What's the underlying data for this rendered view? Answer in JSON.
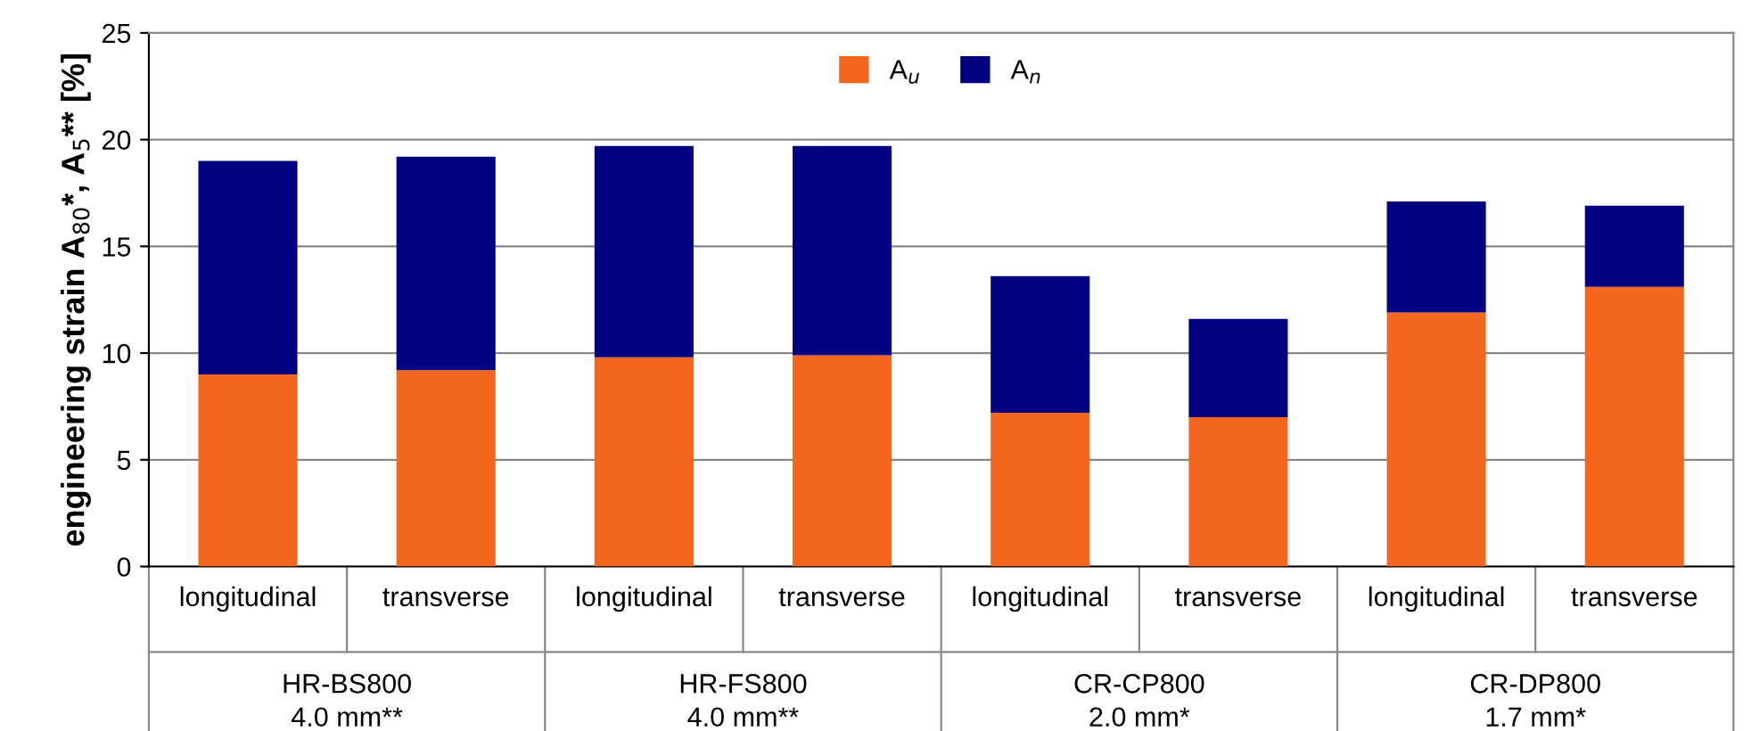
{
  "chart_data": {
    "type": "bar",
    "stacked": true,
    "categories": [
      "longitudinal",
      "transverse",
      "longitudinal",
      "transverse",
      "longitudinal",
      "transverse",
      "longitudinal",
      "transverse"
    ],
    "series": [
      {
        "name": "A$_{u}$",
        "color": "#f4651e",
        "values": [
          9.0,
          9.2,
          9.8,
          9.9,
          7.2,
          7.0,
          11.9,
          13.1
        ]
      },
      {
        "name": "A$_{n}$",
        "color": "#000080",
        "values": [
          10.0,
          10.0,
          9.9,
          9.8,
          6.4,
          4.6,
          5.2,
          3.8
        ]
      }
    ],
    "ylabel": "engineering strain A$_{80}$*, A$_{5}$** [%]",
    "ylim": [
      0,
      25
    ],
    "yticks": [
      0,
      5,
      10,
      15,
      20,
      25
    ],
    "grid": "y",
    "legend": "top",
    "annotations": [
      "HR-BS800\n4.0 mm**",
      "HR-FS800\n4.0 mm**",
      "CR-CP800\n2.0 mm*",
      "CR-DP800\n1.7 mm*"
    ]
  }
}
